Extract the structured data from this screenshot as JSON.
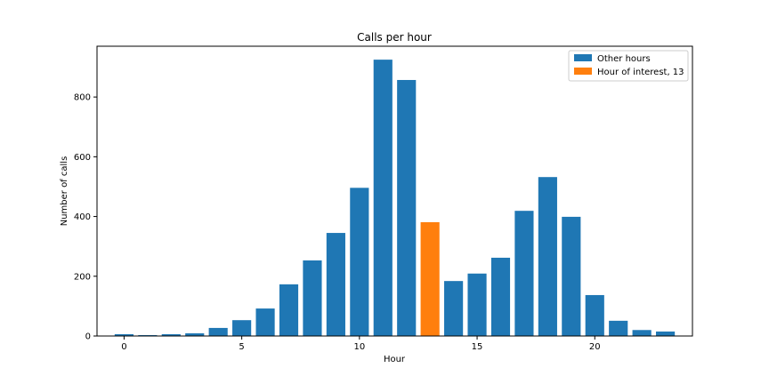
{
  "chart_data": {
    "type": "bar",
    "title": "Calls per hour",
    "xlabel": "Hour",
    "ylabel": "Number of calls",
    "x": [
      0,
      1,
      2,
      3,
      4,
      5,
      6,
      7,
      8,
      9,
      10,
      11,
      12,
      13,
      14,
      15,
      16,
      17,
      18,
      19,
      20,
      21,
      22,
      23
    ],
    "values": [
      6,
      3,
      6,
      9,
      27,
      53,
      92,
      173,
      253,
      345,
      496,
      925,
      857,
      381,
      184,
      209,
      262,
      419,
      532,
      399,
      137,
      51,
      20,
      15
    ],
    "highlight_x": 13,
    "xlim": [
      -1.15,
      24.15
    ],
    "ylim": [
      0,
      970
    ],
    "xticks": [
      0,
      5,
      10,
      15,
      20
    ],
    "yticks": [
      0,
      200,
      400,
      600,
      800
    ],
    "grid": false,
    "legend_position": "top-right",
    "series": [
      {
        "name": "Other hours",
        "color": "#1f77b4"
      },
      {
        "name": "Hour of interest, 13",
        "color": "#ff7f0e"
      }
    ]
  }
}
